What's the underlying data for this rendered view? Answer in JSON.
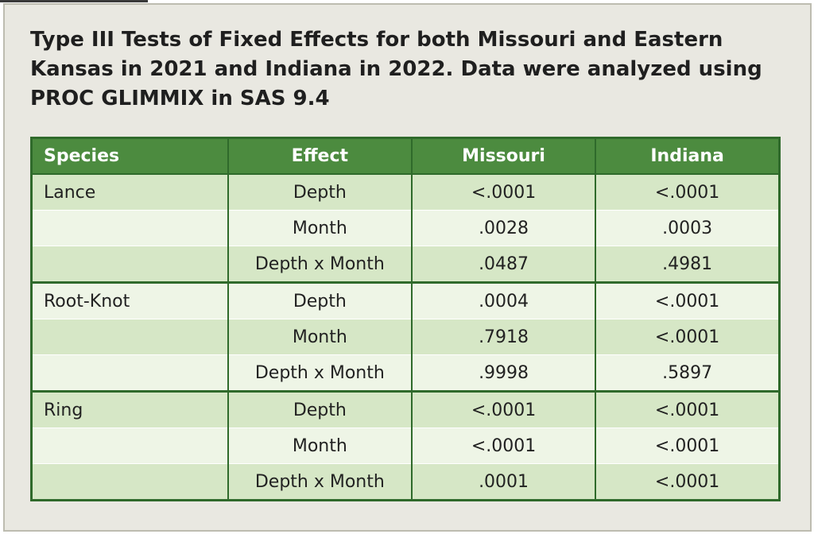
{
  "title": "Type III Tests of Fixed Effects for both Missouri and Eastern Kansas in 2021 and Indiana in 2022. Data were analyzed using PROC GLIMMIX in SAS 9.4",
  "table": {
    "header": [
      "Species",
      "Effect",
      "Missouri",
      "Indiana"
    ],
    "groups": [
      {
        "species": "Lance",
        "rows": [
          [
            "Depth",
            "<.0001",
            "<.0001"
          ],
          [
            "Month",
            ".0028",
            ".0003"
          ],
          [
            "Depth x Month",
            ".0487",
            ".4981"
          ]
        ]
      },
      {
        "species": "Root-Knot",
        "rows": [
          [
            "Depth",
            ".0004",
            "<.0001"
          ],
          [
            "Month",
            ".7918",
            "<.0001"
          ],
          [
            "Depth x Month",
            ".9998",
            ".5897"
          ]
        ]
      },
      {
        "species": "Ring",
        "rows": [
          [
            "Depth",
            "<.0001",
            "<.0001"
          ],
          [
            "Month",
            "<.0001",
            "<.0001"
          ],
          [
            "Depth x Month",
            ".0001",
            "<.0001"
          ]
        ]
      }
    ]
  }
}
